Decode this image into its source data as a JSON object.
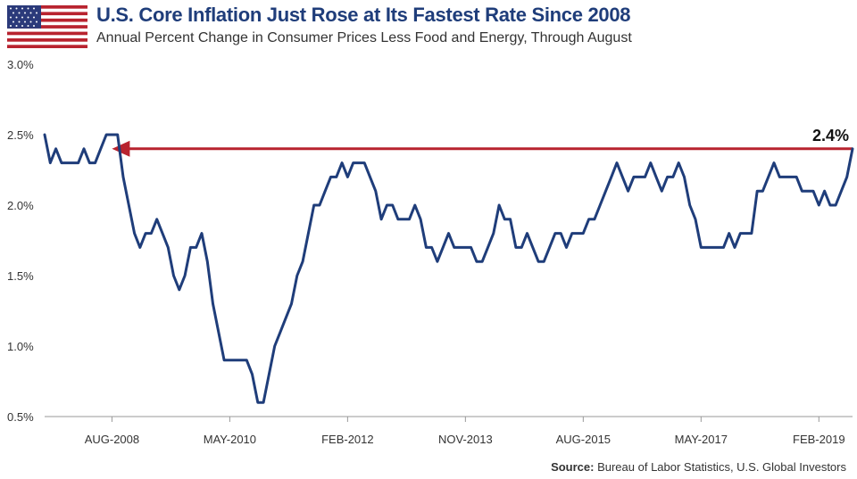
{
  "header": {
    "title": "U.S. Core Inflation Just Rose at Its Fastest Rate Since 2008",
    "subtitle": "Annual Percent Change in Consumer Prices Less Food and Energy, Through August",
    "flag_icon": "us-flag-icon"
  },
  "footer": {
    "source_label": "Source:",
    "source_text": " Bureau of Labor Statistics, U.S. Global Investors"
  },
  "colors": {
    "line": "#1f3d7a",
    "arrow": "#b8232f",
    "title": "#1f3d7a",
    "grid": "#cccccc"
  },
  "chart_data": {
    "type": "line",
    "title": "U.S. Core Inflation Just Rose at Its Fastest Rate Since 2008",
    "subtitle": "Annual Percent Change in Consumer Prices Less Food and Energy, Through August",
    "xlabel": "",
    "ylabel": "",
    "ylim": [
      0.5,
      3.0
    ],
    "yticks": [
      0.5,
      1.0,
      1.5,
      2.0,
      2.5,
      3.0
    ],
    "ytick_labels": [
      "0.5%",
      "1.0%",
      "1.5%",
      "2.0%",
      "2.5%",
      "3.0%"
    ],
    "xlim": [
      "2007-08",
      "2019-08"
    ],
    "xticks": [
      "2008-08",
      "2010-05",
      "2012-02",
      "2013-11",
      "2015-08",
      "2017-05",
      "2019-02"
    ],
    "xtick_labels": [
      "AUG-2008",
      "MAY-2010",
      "FEB-2012",
      "NOV-2013",
      "AUG-2015",
      "MAY-2017",
      "FEB-2019"
    ],
    "grid": false,
    "series": [
      {
        "x": [
          "2007-08",
          "2007-09",
          "2007-10",
          "2007-11",
          "2007-12",
          "2008-01",
          "2008-02",
          "2008-03",
          "2008-04",
          "2008-05",
          "2008-06",
          "2008-07",
          "2008-08",
          "2008-09",
          "2008-10",
          "2008-11",
          "2008-12",
          "2009-01",
          "2009-02",
          "2009-03",
          "2009-04",
          "2009-05",
          "2009-06",
          "2009-07",
          "2009-08",
          "2009-09",
          "2009-10",
          "2009-11",
          "2009-12",
          "2010-01",
          "2010-02",
          "2010-03",
          "2010-04",
          "2010-05",
          "2010-06",
          "2010-07",
          "2010-08",
          "2010-09",
          "2010-10",
          "2010-11",
          "2010-12",
          "2011-01",
          "2011-02",
          "2011-03",
          "2011-04",
          "2011-05",
          "2011-06",
          "2011-07",
          "2011-08",
          "2011-09",
          "2011-10",
          "2011-11",
          "2011-12",
          "2012-01",
          "2012-02",
          "2012-03",
          "2012-04",
          "2012-05",
          "2012-06",
          "2012-07",
          "2012-08",
          "2012-09",
          "2012-10",
          "2012-11",
          "2012-12",
          "2013-01",
          "2013-02",
          "2013-03",
          "2013-04",
          "2013-05",
          "2013-06",
          "2013-07",
          "2013-08",
          "2013-09",
          "2013-10",
          "2013-11",
          "2013-12",
          "2014-01",
          "2014-02",
          "2014-03",
          "2014-04",
          "2014-05",
          "2014-06",
          "2014-07",
          "2014-08",
          "2014-09",
          "2014-10",
          "2014-11",
          "2014-12",
          "2015-01",
          "2015-02",
          "2015-03",
          "2015-04",
          "2015-05",
          "2015-06",
          "2015-07",
          "2015-08",
          "2015-09",
          "2015-10",
          "2015-11",
          "2015-12",
          "2016-01",
          "2016-02",
          "2016-03",
          "2016-04",
          "2016-05",
          "2016-06",
          "2016-07",
          "2016-08",
          "2016-09",
          "2016-10",
          "2016-11",
          "2016-12",
          "2017-01",
          "2017-02",
          "2017-03",
          "2017-04",
          "2017-05",
          "2017-06",
          "2017-07",
          "2017-08",
          "2017-09",
          "2017-10",
          "2017-11",
          "2017-12",
          "2018-01",
          "2018-02",
          "2018-03",
          "2018-04",
          "2018-05",
          "2018-06",
          "2018-07",
          "2018-08",
          "2018-09",
          "2018-10",
          "2018-11",
          "2018-12",
          "2019-01",
          "2019-02",
          "2019-03",
          "2019-04",
          "2019-05",
          "2019-06",
          "2019-07",
          "2019-08"
        ],
        "values": [
          2.5,
          2.3,
          2.4,
          2.3,
          2.3,
          2.3,
          2.3,
          2.4,
          2.3,
          2.3,
          2.4,
          2.5,
          2.5,
          2.5,
          2.2,
          2.0,
          1.8,
          1.7,
          1.8,
          1.8,
          1.9,
          1.8,
          1.7,
          1.5,
          1.4,
          1.5,
          1.7,
          1.7,
          1.8,
          1.6,
          1.3,
          1.1,
          0.9,
          0.9,
          0.9,
          0.9,
          0.9,
          0.8,
          0.6,
          0.6,
          0.8,
          1.0,
          1.1,
          1.2,
          1.3,
          1.5,
          1.6,
          1.8,
          2.0,
          2.0,
          2.1,
          2.2,
          2.2,
          2.3,
          2.2,
          2.3,
          2.3,
          2.3,
          2.2,
          2.1,
          1.9,
          2.0,
          2.0,
          1.9,
          1.9,
          1.9,
          2.0,
          1.9,
          1.7,
          1.7,
          1.6,
          1.7,
          1.8,
          1.7,
          1.7,
          1.7,
          1.7,
          1.6,
          1.6,
          1.7,
          1.8,
          2.0,
          1.9,
          1.9,
          1.7,
          1.7,
          1.8,
          1.7,
          1.6,
          1.6,
          1.7,
          1.8,
          1.8,
          1.7,
          1.8,
          1.8,
          1.8,
          1.9,
          1.9,
          2.0,
          2.1,
          2.2,
          2.3,
          2.2,
          2.1,
          2.2,
          2.2,
          2.2,
          2.3,
          2.2,
          2.1,
          2.2,
          2.2,
          2.3,
          2.2,
          2.0,
          1.9,
          1.7,
          1.7,
          1.7,
          1.7,
          1.7,
          1.8,
          1.7,
          1.8,
          1.8,
          1.8,
          2.1,
          2.1,
          2.2,
          2.3,
          2.2,
          2.2,
          2.2,
          2.2,
          2.1,
          2.1,
          2.1,
          2.0,
          2.1,
          2.0,
          2.0,
          2.1,
          2.2,
          2.4
        ]
      }
    ],
    "annotations": [
      {
        "text": "2.4%",
        "x_from": "2019-08",
        "x_to": "2008-08",
        "y": 2.4
      }
    ]
  }
}
